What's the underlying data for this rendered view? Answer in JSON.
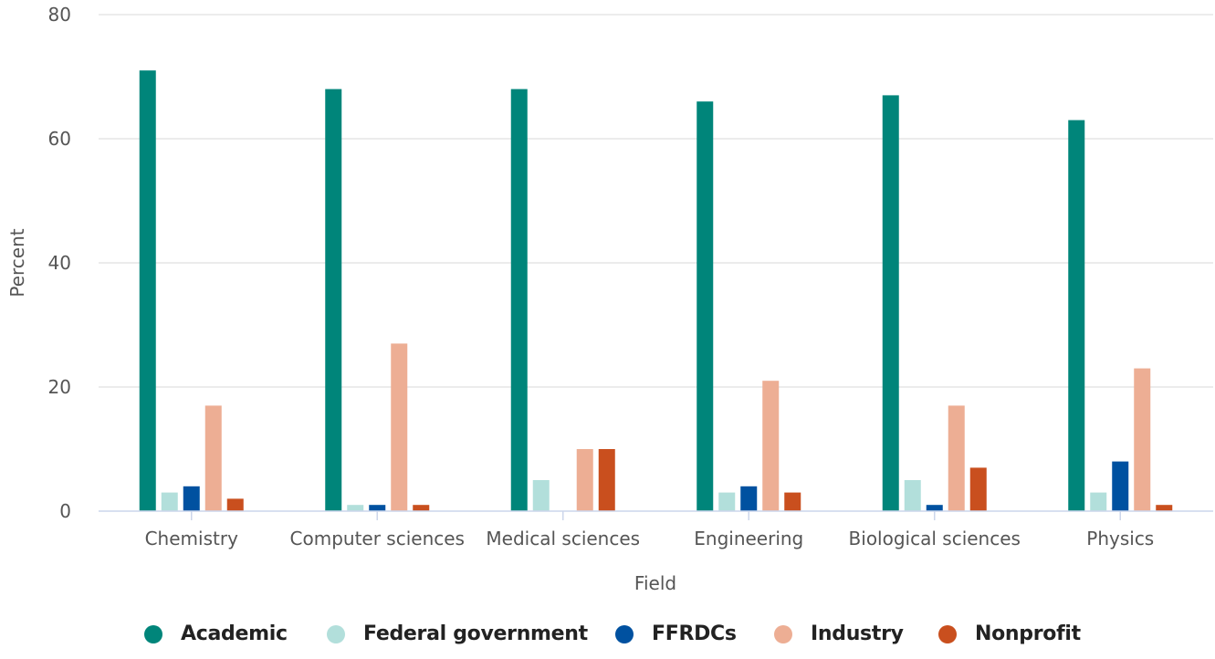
{
  "chart_data": {
    "type": "bar",
    "title": "",
    "xlabel": "Field",
    "ylabel": "Percent",
    "ylim": [
      0,
      80
    ],
    "yticks": [
      0,
      20,
      40,
      60,
      80
    ],
    "grid": true,
    "legend_position": "bottom",
    "categories": [
      "Chemistry",
      "Computer sciences",
      "Medical sciences",
      "Engineering",
      "Biological sciences",
      "Physics"
    ],
    "series": [
      {
        "name": "Academic",
        "color": "#00857a",
        "values": [
          71,
          68,
          68,
          66,
          67,
          63
        ]
      },
      {
        "name": "Federal government",
        "color": "#b2dfdb",
        "values": [
          3,
          1,
          5,
          3,
          5,
          3
        ]
      },
      {
        "name": "FFRDCs",
        "color": "#0051a0",
        "values": [
          4,
          1,
          0,
          4,
          1,
          8
        ]
      },
      {
        "name": "Industry",
        "color": "#edae94",
        "values": [
          17,
          27,
          10,
          21,
          17,
          23
        ]
      },
      {
        "name": "Nonprofit",
        "color": "#c94f1e",
        "values": [
          2,
          1,
          10,
          3,
          7,
          1
        ]
      }
    ]
  }
}
